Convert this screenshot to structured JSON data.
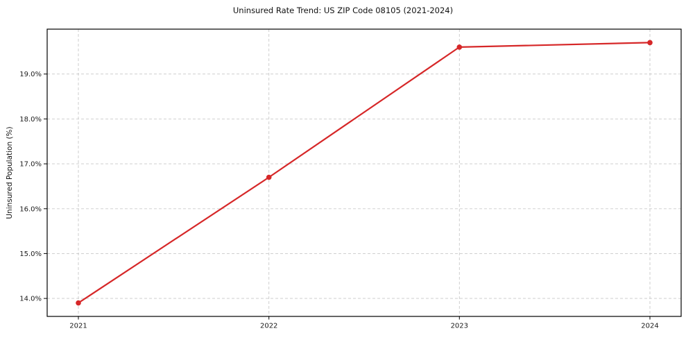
{
  "chart_data": {
    "type": "line",
    "title": "Uninsured Rate Trend: US ZIP Code 08105 (2021-2024)",
    "xlabel": "",
    "ylabel": "Uninsured Population (%)",
    "categories": [
      "2021",
      "2022",
      "2023",
      "2024"
    ],
    "values": [
      13.9,
      16.7,
      19.6,
      19.7
    ],
    "ylim": [
      13.6,
      20.0
    ],
    "yticks": [
      14,
      15,
      16,
      17,
      18,
      19
    ],
    "ytick_labels": [
      "14.0%",
      "15.0%",
      "16.0%",
      "17.0%",
      "18.0%",
      "19.0%"
    ],
    "grid": true,
    "grid_style": "dashed",
    "legend_position": "none",
    "colors": {
      "line": "#d62728",
      "marker": "#d62728",
      "grid": "#c9c9c9",
      "axis": "#000000",
      "text": "#1a1a1a",
      "background": "#ffffff"
    }
  }
}
